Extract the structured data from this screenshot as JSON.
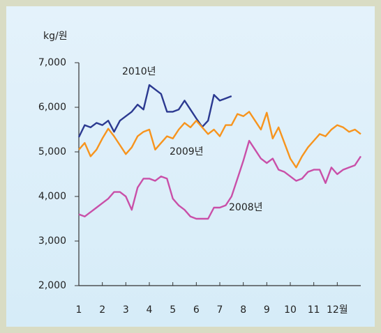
{
  "chart_data": {
    "type": "line",
    "y_axis_label": "kg/원",
    "x": [
      1,
      1.25,
      1.5,
      1.75,
      2,
      2.25,
      2.5,
      2.75,
      3,
      3.25,
      3.5,
      3.75,
      4,
      4.25,
      4.5,
      4.75,
      5,
      5.25,
      5.5,
      5.75,
      6,
      6.25,
      6.5,
      6.75,
      7,
      7.25,
      7.5,
      7.75,
      8,
      8.25,
      8.5,
      8.75,
      9,
      9.25,
      9.5,
      9.75,
      10,
      10.25,
      10.5,
      10.75,
      11,
      11.25,
      11.5,
      11.75,
      12,
      12.25,
      12.5,
      12.75,
      13
    ],
    "series": [
      {
        "name": "2010년",
        "color": "#2b3990",
        "values": [
          5330,
          5600,
          5550,
          5650,
          5600,
          5700,
          5450,
          5700,
          5800,
          5900,
          6060,
          5950,
          6500,
          6400,
          6300,
          5900,
          5900,
          5950,
          6150,
          5950,
          5750,
          5560,
          5700,
          6280,
          6150,
          6200,
          6250,
          null,
          null,
          null,
          null,
          null,
          null,
          null,
          null,
          null,
          null,
          null,
          null,
          null,
          null,
          null,
          null,
          null,
          null,
          null,
          null,
          null,
          null
        ]
      },
      {
        "name": "2009년",
        "color": "#f7941d",
        "values": [
          5050,
          5200,
          4900,
          5050,
          5300,
          5520,
          5350,
          5150,
          4950,
          5100,
          5350,
          5450,
          5500,
          5050,
          5200,
          5350,
          5300,
          5500,
          5650,
          5550,
          5700,
          5550,
          5400,
          5500,
          5350,
          5600,
          5600,
          5850,
          5800,
          5900,
          5700,
          5500,
          5880,
          5300,
          5550,
          5200,
          4850,
          4650,
          4900,
          5100,
          5250,
          5400,
          5350,
          5500,
          5600,
          5550,
          5450,
          5500,
          5400
        ]
      },
      {
        "name": "2008년",
        "color": "#c94fa8",
        "values": [
          3600,
          3550,
          3650,
          3750,
          3850,
          3950,
          4100,
          4100,
          4000,
          3700,
          4200,
          4400,
          4400,
          4350,
          4450,
          4400,
          3950,
          3800,
          3700,
          3550,
          3500,
          3500,
          3500,
          3750,
          3750,
          3800,
          4000,
          4400,
          4800,
          5250,
          5050,
          4850,
          4750,
          4850,
          4600,
          4550,
          4450,
          4350,
          4400,
          4550,
          4600,
          4600,
          4300,
          4650,
          4500,
          4600,
          4650,
          4700,
          4900
        ]
      }
    ],
    "xlim": [
      1,
      13
    ],
    "xticks": [
      1,
      2,
      3,
      4,
      5,
      6,
      7,
      8,
      9,
      10,
      11,
      {
        "value": 12,
        "label": "12월"
      }
    ],
    "ylim": [
      2000,
      7000
    ],
    "yticks": [
      {
        "value": 2000,
        "label": "2,000"
      },
      {
        "value": 3000,
        "label": "3,000"
      },
      {
        "value": 4000,
        "label": "4,000"
      },
      {
        "value": 5000,
        "label": "5,000"
      },
      {
        "value": 6000,
        "label": "6,000"
      },
      {
        "value": 7000,
        "label": "7,000"
      }
    ]
  }
}
